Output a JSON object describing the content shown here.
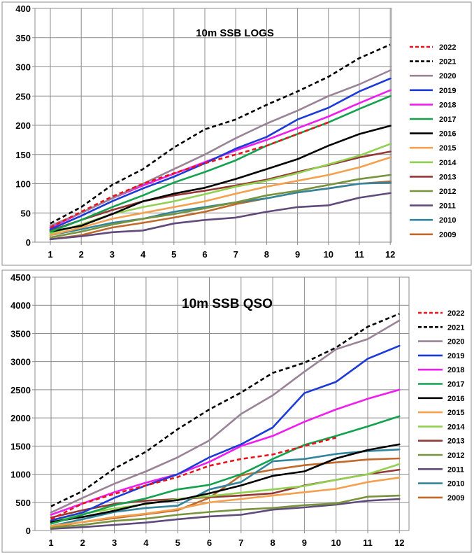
{
  "chart_data": [
    {
      "type": "line",
      "title": "10m SSB LOGS",
      "xlabel": "",
      "ylabel": "",
      "x": [
        1,
        2,
        3,
        4,
        5,
        6,
        7,
        8,
        9,
        10,
        11,
        12
      ],
      "ylim": [
        0,
        400
      ],
      "yticks": [
        0,
        50,
        100,
        150,
        200,
        250,
        300,
        350,
        400
      ],
      "grid": true,
      "legend": "right",
      "series": [
        {
          "name": "2022",
          "color": "#e8141a",
          "dashed": true,
          "values": [
            25,
            52,
            78,
            100,
            118,
            135,
            150,
            165,
            185,
            205,
            null,
            null
          ]
        },
        {
          "name": "2021",
          "color": "#000000",
          "dashed": true,
          "values": [
            32,
            60,
            98,
            125,
            162,
            193,
            210,
            235,
            258,
            283,
            315,
            338
          ]
        },
        {
          "name": "2020",
          "color": "#9a8397",
          "dashed": false,
          "values": [
            28,
            50,
            75,
            100,
            125,
            150,
            178,
            203,
            225,
            250,
            270,
            294
          ]
        },
        {
          "name": "2019",
          "color": "#1b3ad8",
          "dashed": false,
          "values": [
            22,
            45,
            70,
            92,
            112,
            135,
            160,
            180,
            210,
            230,
            258,
            280
          ]
        },
        {
          "name": "2018",
          "color": "#f01cf0",
          "dashed": false,
          "values": [
            25,
            50,
            75,
            97,
            117,
            137,
            157,
            175,
            195,
            215,
            238,
            260
          ]
        },
        {
          "name": "2017",
          "color": "#12a24e",
          "dashed": false,
          "values": [
            18,
            38,
            60,
            80,
            102,
            120,
            140,
            165,
            185,
            205,
            228,
            250
          ]
        },
        {
          "name": "2016",
          "color": "#000000",
          "dashed": false,
          "values": [
            18,
            28,
            48,
            70,
            83,
            93,
            108,
            125,
            142,
            165,
            185,
            199
          ]
        },
        {
          "name": "2015",
          "color": "#f4a04d",
          "dashed": false,
          "values": [
            12,
            25,
            40,
            50,
            60,
            70,
            83,
            95,
            105,
            115,
            128,
            145
          ]
        },
        {
          "name": "2014",
          "color": "#92d050",
          "dashed": false,
          "values": [
            15,
            30,
            48,
            60,
            70,
            82,
            95,
            105,
            118,
            133,
            148,
            168
          ]
        },
        {
          "name": "2013",
          "color": "#953735",
          "dashed": false,
          "values": [
            20,
            38,
            55,
            70,
            80,
            88,
            97,
            107,
            120,
            132,
            145,
            155
          ]
        },
        {
          "name": "2012",
          "color": "#77933c",
          "dashed": false,
          "values": [
            8,
            18,
            30,
            40,
            48,
            58,
            68,
            80,
            88,
            98,
            108,
            115
          ]
        },
        {
          "name": "2011",
          "color": "#604a7b",
          "dashed": false,
          "values": [
            5,
            10,
            17,
            20,
            32,
            38,
            42,
            52,
            60,
            63,
            76,
            84
          ]
        },
        {
          "name": "2010",
          "color": "#31859c",
          "dashed": false,
          "values": [
            12,
            22,
            33,
            40,
            52,
            60,
            68,
            75,
            85,
            92,
            100,
            102
          ]
        },
        {
          "name": "2009",
          "color": "#c0692a",
          "dashed": false,
          "values": [
            5,
            12,
            25,
            33,
            42,
            52,
            65,
            75,
            85,
            92,
            100,
            104
          ]
        }
      ]
    },
    {
      "type": "line",
      "title": "10m SSB QSO",
      "xlabel": "",
      "ylabel": "",
      "x": [
        1,
        2,
        3,
        4,
        5,
        6,
        7,
        8,
        9,
        10,
        11,
        12
      ],
      "ylim": [
        0,
        4500
      ],
      "yticks": [
        0,
        500,
        1000,
        1500,
        2000,
        2500,
        3000,
        3500,
        4000,
        4500
      ],
      "grid": true,
      "legend": "right",
      "series": [
        {
          "name": "2022",
          "color": "#e8141a",
          "dashed": true,
          "values": [
            200,
            480,
            650,
            800,
            950,
            1150,
            1270,
            1350,
            1500,
            1650,
            null,
            null
          ]
        },
        {
          "name": "2021",
          "color": "#000000",
          "dashed": true,
          "values": [
            430,
            700,
            1100,
            1400,
            1800,
            2150,
            2450,
            2800,
            2980,
            3250,
            3620,
            3850
          ]
        },
        {
          "name": "2020",
          "color": "#9a8397",
          "dashed": false,
          "values": [
            320,
            580,
            830,
            1050,
            1300,
            1600,
            2070,
            2400,
            2820,
            3220,
            3400,
            3730
          ]
        },
        {
          "name": "2019",
          "color": "#1b3ad8",
          "dashed": false,
          "values": [
            180,
            320,
            580,
            800,
            1000,
            1300,
            1530,
            1830,
            2440,
            2640,
            3050,
            3280
          ]
        },
        {
          "name": "2018",
          "color": "#f01cf0",
          "dashed": false,
          "values": [
            280,
            480,
            680,
            850,
            1000,
            1220,
            1500,
            1680,
            1930,
            2150,
            2340,
            2500
          ]
        },
        {
          "name": "2017",
          "color": "#12a24e",
          "dashed": false,
          "values": [
            120,
            280,
            450,
            570,
            730,
            810,
            1000,
            1270,
            1520,
            1680,
            1850,
            2030
          ]
        },
        {
          "name": "2016",
          "color": "#000000",
          "dashed": false,
          "values": [
            150,
            240,
            350,
            480,
            540,
            660,
            800,
            970,
            1050,
            1280,
            1430,
            1530
          ]
        },
        {
          "name": "2015",
          "color": "#f4a04d",
          "dashed": false,
          "values": [
            80,
            150,
            240,
            300,
            380,
            500,
            560,
            620,
            680,
            740,
            860,
            940
          ]
        },
        {
          "name": "2014",
          "color": "#92d050",
          "dashed": false,
          "values": [
            160,
            300,
            390,
            470,
            560,
            610,
            670,
            730,
            790,
            900,
            1000,
            1180
          ]
        },
        {
          "name": "2013",
          "color": "#953735",
          "dashed": false,
          "values": [
            230,
            360,
            470,
            530,
            560,
            590,
            620,
            660,
            800,
            900,
            1000,
            1080
          ]
        },
        {
          "name": "2012",
          "color": "#77933c",
          "dashed": false,
          "values": [
            50,
            100,
            170,
            210,
            280,
            330,
            370,
            400,
            450,
            480,
            600,
            620
          ]
        },
        {
          "name": "2011",
          "color": "#604a7b",
          "dashed": false,
          "values": [
            30,
            60,
            100,
            140,
            200,
            250,
            280,
            370,
            410,
            460,
            530,
            560
          ]
        },
        {
          "name": "2010",
          "color": "#31859c",
          "dashed": false,
          "values": [
            80,
            200,
            330,
            400,
            440,
            730,
            860,
            1230,
            1270,
            1360,
            1410,
            1440
          ]
        },
        {
          "name": "2009",
          "color": "#c0692a",
          "dashed": false,
          "values": [
            60,
            150,
            220,
            290,
            360,
            580,
            980,
            1080,
            1160,
            1210,
            1260,
            1280
          ]
        }
      ]
    }
  ]
}
